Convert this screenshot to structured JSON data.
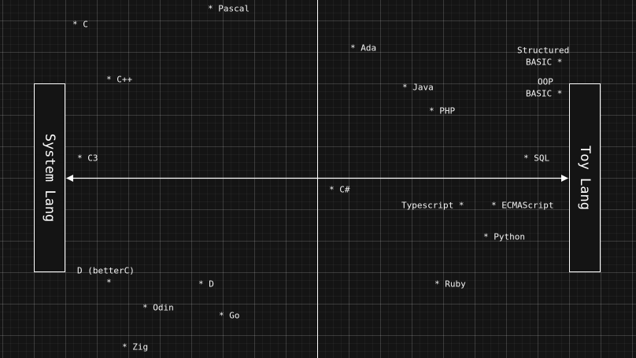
{
  "axis": {
    "left_label": "System Lang",
    "right_label": "Toy Lang"
  },
  "languages": {
    "pascal": "* Pascal",
    "c": "* C",
    "ada": "* Ada",
    "structured_basic_1": "Structured",
    "structured_basic_2": "BASIC *",
    "cpp": "* C++",
    "java": "* Java",
    "oop_basic_1": "OOP",
    "oop_basic_2": "BASIC *",
    "php": "* PHP",
    "c3": "* C3",
    "sql": "* SQL",
    "csharp": "* C#",
    "typescript": "Typescript *",
    "ecmascript": "* ECMAScript",
    "python": "* Python",
    "d_betterc_1": "D (betterC)",
    "d_betterc_2": "*",
    "d": "* D",
    "ruby": "* Ruby",
    "odin": "* Odin",
    "go": "* Go",
    "zig": "* Zig"
  },
  "colors": {
    "background": "#141414",
    "foreground": "#ffffff"
  }
}
